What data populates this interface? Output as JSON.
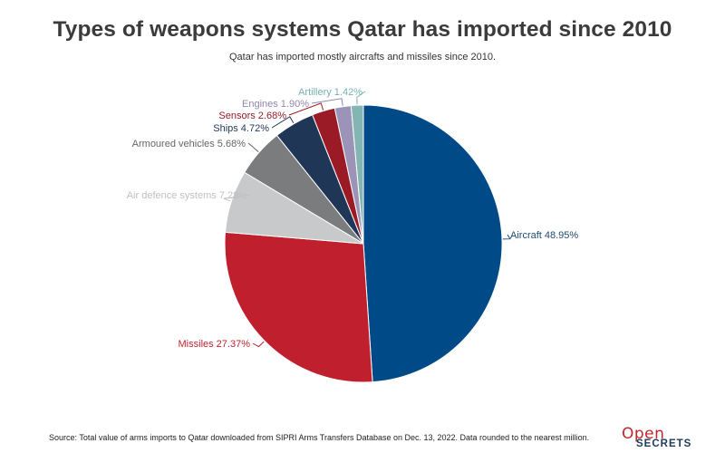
{
  "header": {
    "title": "Types of weapons systems Qatar has imported since 2010",
    "subtitle": "Qatar has imported mostly aircrafts and missiles since 2010."
  },
  "footer": {
    "source": "Source: Total value of arms imports to Qatar downloaded from SIPRI Arms Transfers Database on Dec. 13, 2022. Data rounded to the nearest million.",
    "logo_open": "Open",
    "logo_secrets": "SECRETS"
  },
  "chart_data": {
    "type": "pie",
    "title": "Types of weapons systems Qatar has imported since 2010",
    "subtitle": "Qatar has imported mostly aircrafts and missiles since 2010.",
    "start": "12 o'clock, clockwise",
    "slices": [
      {
        "name": "Aircraft",
        "value": 48.95,
        "label": "Aircraft 48.95%",
        "color": "#004b87"
      },
      {
        "name": "Missiles",
        "value": 27.37,
        "label": "Missiles 27.37%",
        "color": "#c0202e"
      },
      {
        "name": "Air defence systems",
        "value": 7.28,
        "label": "Air defence systems 7.28%",
        "color": "#c8c9cb"
      },
      {
        "name": "Armoured vehicles",
        "value": 5.68,
        "label": "Armoured vehicles 5.68%",
        "color": "#7b7c7e"
      },
      {
        "name": "Ships",
        "value": 4.72,
        "label": "Ships 4.72%",
        "color": "#1f3657"
      },
      {
        "name": "Sensors",
        "value": 2.68,
        "label": "Sensors 2.68%",
        "color": "#9a1b25"
      },
      {
        "name": "Engines",
        "value": 1.9,
        "label": "Engines 1.90%",
        "color": "#9b94b8"
      },
      {
        "name": "Artillery",
        "value": 1.42,
        "label": "Artillery 1.42%",
        "color": "#84b5b5"
      }
    ],
    "label_colors": [
      "#1d4a72",
      "#c0202e",
      "#c0c0c0",
      "#666666",
      "#1f3657",
      "#9a1b25",
      "#8f86b0",
      "#78b0b0"
    ]
  }
}
